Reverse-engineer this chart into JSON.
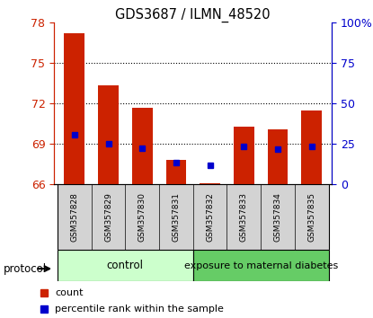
{
  "title": "GDS3687 / ILMN_48520",
  "samples": [
    "GSM357828",
    "GSM357829",
    "GSM357830",
    "GSM357831",
    "GSM357832",
    "GSM357833",
    "GSM357834",
    "GSM357835"
  ],
  "count_values": [
    77.2,
    73.3,
    71.7,
    67.8,
    66.1,
    70.3,
    70.1,
    71.5
  ],
  "percentile_values": [
    69.7,
    69.0,
    68.7,
    67.6,
    67.4,
    68.8,
    68.6,
    68.8
  ],
  "ylim_left": [
    66,
    78
  ],
  "yticks_left": [
    66,
    69,
    72,
    75,
    78
  ],
  "ylim_right": [
    0,
    100
  ],
  "yticks_right_vals": [
    0,
    25,
    50,
    75,
    100
  ],
  "yticks_right_labels": [
    "0",
    "25",
    "50",
    "75",
    "100%"
  ],
  "bar_color": "#cc2200",
  "percentile_color": "#0000cc",
  "bar_width": 0.6,
  "control_label": "control",
  "diabetes_label": "exposure to maternal diabetes",
  "protocol_label": "protocol",
  "control_bg": "#ccffcc",
  "diabetes_bg": "#66cc66",
  "tick_label_color_left": "#cc2200",
  "tick_label_color_right": "#0000cc",
  "legend_count_label": "count",
  "legend_percentile_label": "percentile rank within the sample",
  "grid_yticks": [
    69,
    72,
    75
  ],
  "base_value": 66
}
